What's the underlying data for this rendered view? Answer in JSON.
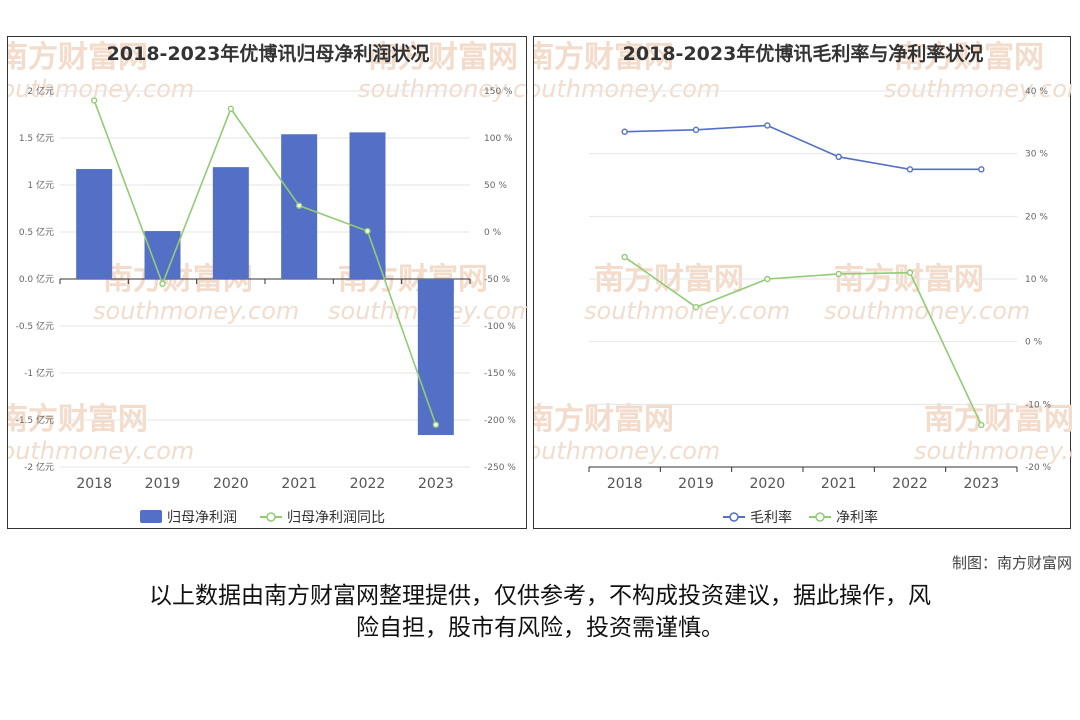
{
  "footer": {
    "credit": "制图：南方财富网",
    "disclaimer_line1": "以上数据由南方财富网整理提供，仅供参考，不构成投资建议，据此操作，风",
    "disclaimer_line2": "险自担，股市有风险，投资需谨慎。"
  },
  "watermark": {
    "cn": "南方财富网",
    "en": "southmoney.com"
  },
  "colors": {
    "bar": "#5470c6",
    "green": "#91cc75",
    "blue": "#5470c6"
  },
  "chart_data": [
    {
      "type": "bar",
      "title": "2018-2023年优博讯归母净利润状况",
      "categories": [
        "2018",
        "2019",
        "2020",
        "2021",
        "2022",
        "2023"
      ],
      "series": [
        {
          "name": "归母净利润",
          "type": "bar",
          "axis": "left",
          "values": [
            1.17,
            0.51,
            1.19,
            1.54,
            1.56,
            -1.66
          ]
        },
        {
          "name": "归母净利润同比",
          "type": "line",
          "axis": "right",
          "values": [
            140,
            -55,
            131,
            28,
            1,
            -205
          ]
        }
      ],
      "y_left": {
        "range": [
          -2,
          2
        ],
        "ticks": [
          "2 亿元",
          "1.5 亿元",
          "1 亿元",
          "0.5 亿元",
          "0.0 亿元",
          "-0.5 亿元",
          "-1 亿元",
          "-1.5 亿元",
          "-2 亿元"
        ]
      },
      "y_right": {
        "range": [
          -250,
          150
        ],
        "ticks": [
          "150 %",
          "100 %",
          "50 %",
          "0 %",
          "-50 %",
          "-100 %",
          "-150 %",
          "-200 %",
          "-250 %"
        ]
      },
      "legend": "bottom-center",
      "grid": true
    },
    {
      "type": "line",
      "title": "2018-2023年优博讯毛利率与净利率状况",
      "categories": [
        "2018",
        "2019",
        "2020",
        "2021",
        "2022",
        "2023"
      ],
      "series": [
        {
          "name": "毛利率",
          "values": [
            33.5,
            33.8,
            34.5,
            29.5,
            27.5,
            27.5
          ]
        },
        {
          "name": "净利率",
          "values": [
            13.5,
            5.5,
            10.0,
            10.8,
            11.0,
            -13.3
          ]
        }
      ],
      "y_right": {
        "range": [
          -20,
          40
        ],
        "ticks": [
          "40 %",
          "30 %",
          "20 %",
          "10 %",
          "0 %",
          "-10 %",
          "-20 %"
        ]
      },
      "legend": "bottom-center",
      "grid": true
    }
  ]
}
